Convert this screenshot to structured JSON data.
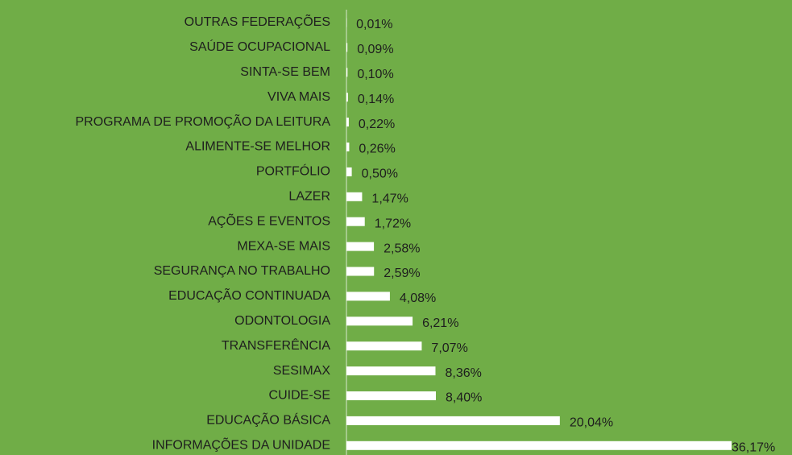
{
  "chart_data": {
    "type": "bar",
    "orientation": "horizontal",
    "color": "#ffffff",
    "categories": [
      "OUTRAS FEDERAÇÕES",
      "SAÚDE OCUPACIONAL",
      "SINTA-SE BEM",
      "VIVA MAIS",
      "PROGRAMA DE PROMOÇÃO DA LEITURA",
      "ALIMENTE-SE MELHOR",
      "PORTFÓLIO",
      "LAZER",
      "AÇÕES E EVENTOS",
      "MEXA-SE MAIS",
      "SEGURANÇA NO TRABALHO",
      "EDUCAÇÃO CONTINUADA",
      "ODONTOLOGIA",
      "TRANSFERÊNCIA",
      "SESIMAX",
      "CUIDE-SE",
      "EDUCAÇÃO BÁSICA",
      "INFORMAÇÕES DA UNIDADE"
    ],
    "values": [
      0.01,
      0.09,
      0.1,
      0.14,
      0.22,
      0.26,
      0.5,
      1.47,
      1.72,
      2.58,
      2.59,
      4.08,
      6.21,
      7.07,
      8.36,
      8.4,
      20.04,
      36.17
    ],
    "value_labels": [
      "0,01%",
      "0,09%",
      "0,10%",
      "0,14%",
      "0,22%",
      "0,26%",
      "0,50%",
      "1,47%",
      "1,72%",
      "2,58%",
      "2,59%",
      "4,08%",
      "6,21%",
      "7,07%",
      "8,36%",
      "8,40%",
      "20,04%",
      "36,17%"
    ]
  }
}
